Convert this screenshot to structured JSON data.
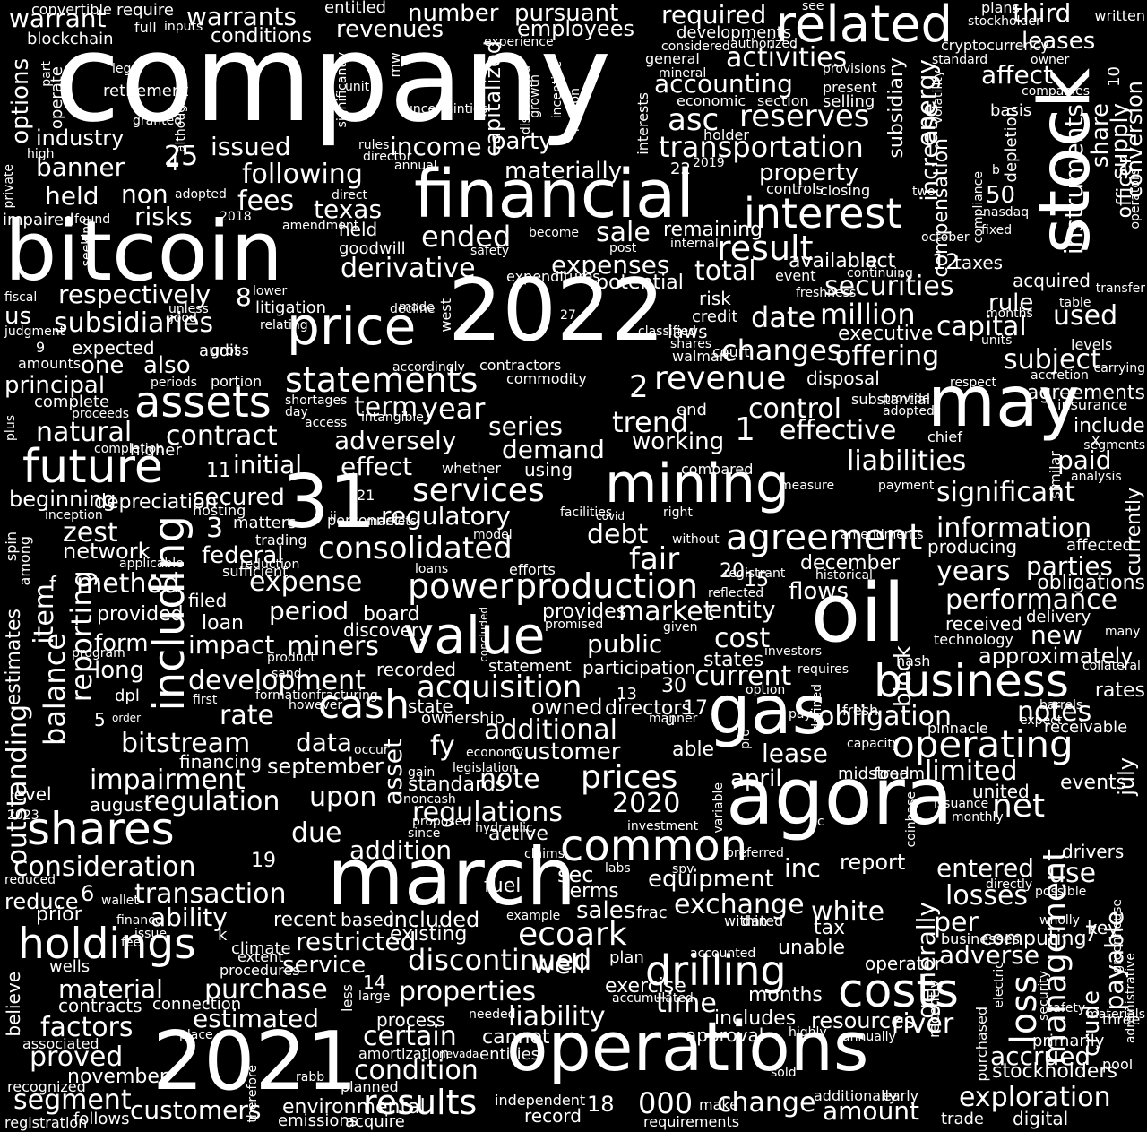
{
  "colors": {
    "background": "#000000",
    "text": "#ffffff"
  },
  "words": [
    "company",
    "bitcoin",
    "2022",
    "financial",
    "stock",
    "related",
    "may",
    "oil",
    "gas",
    "agora",
    "march",
    "2021",
    "operations",
    "31",
    "mining",
    "price",
    "assets",
    "future",
    "shares",
    "holdings",
    "value",
    "including",
    "cash",
    "business",
    "operating",
    "costs",
    "drilling",
    "interest",
    "statements",
    "services",
    "agreement",
    "consolidated",
    "production",
    "power",
    "common",
    "acquisition",
    "revenue",
    "accounting",
    "transportation",
    "reserves",
    "asc",
    "activities",
    "income",
    "issued",
    "industry",
    "banner",
    "following",
    "fees",
    "held",
    "non",
    "risks",
    "texas",
    "ended",
    "sale",
    "derivative",
    "expenses",
    "total",
    "result",
    "securities",
    "million",
    "capital",
    "date",
    "changes",
    "offering",
    "subject",
    "used",
    "executive",
    "respectively",
    "subsidiaries",
    "us",
    "one",
    "also",
    "principal",
    "term",
    "year",
    "trend",
    "control",
    "effective",
    "liabilities",
    "paid",
    "significant",
    "information",
    "natural",
    "contract",
    "adversely",
    "series",
    "demand",
    "working",
    "effect",
    "initial",
    "regulatory",
    "zest",
    "federal",
    "debt",
    "fair",
    "flows",
    "performance",
    "parties",
    "years",
    "period",
    "expense",
    "impact",
    "development",
    "miners",
    "market",
    "public",
    "cost",
    "new",
    "approximately",
    "current",
    "rate",
    "obligation",
    "notes",
    "bitstream",
    "data",
    "additional",
    "fy",
    "customer",
    "lease",
    "impairment",
    "prices",
    "note",
    "limited",
    "regulation",
    "upon",
    "regulations",
    "2020",
    "asset",
    "net",
    "due",
    "consideration",
    "transaction",
    "addition",
    "report",
    "entered",
    "inc",
    "use",
    "ability",
    "included",
    "ecoark",
    "exchange",
    "equipment",
    "white",
    "losses",
    "per",
    "well",
    "adverse",
    "material",
    "purchase",
    "properties",
    "estimated",
    "liability",
    "time",
    "loss",
    "management",
    "payable",
    "river",
    "factors",
    "proved",
    "certain",
    "condition",
    "results",
    "exploration",
    "accrued",
    "segment",
    "customers",
    "000",
    "change",
    "amount",
    "stockholders",
    "warrant",
    "warrants",
    "number",
    "pursuant",
    "required",
    "third",
    "leases",
    "affect",
    "energy",
    "increase",
    "instruments",
    "share",
    "supply",
    "conversion",
    "officer",
    "subsidiary",
    "compensation",
    "basis",
    "depletion",
    "revenues",
    "employees",
    "conditions",
    "options",
    "operate",
    "blockchain",
    "convertible",
    "require",
    "entitled",
    "party",
    "capitalized",
    "materially",
    "property",
    "interests",
    "held",
    "goodwill",
    "remaining",
    "potential",
    "available",
    "act",
    "taxes",
    "acquired",
    "rule",
    "risk",
    "laws",
    "court",
    "walmart",
    "credit",
    "disposal",
    "agreements",
    "include",
    "chief",
    "insurance",
    "method",
    "item",
    "balance",
    "reporting",
    "outstanding",
    "estimates",
    "depreciation",
    "network",
    "beginning",
    "secured",
    "filed",
    "provided",
    "form",
    "long",
    "loan",
    "board",
    "discovery",
    "provides",
    "entity",
    "states",
    "received",
    "delivery",
    "participation",
    "recorded",
    "statement",
    "ownership",
    "directors",
    "state",
    "owned",
    "able",
    "april",
    "midstream",
    "food",
    "united",
    "events",
    "level",
    "august",
    "july",
    "september",
    "financing",
    "standards",
    "active",
    "existing",
    "discontinued",
    "service",
    "restricted",
    "recent",
    "based",
    "sales",
    "sec",
    "terms",
    "fuel",
    "unable",
    "tax",
    "computing",
    "operator",
    "months",
    "includes",
    "approval",
    "resources",
    "exercise",
    "plan",
    "reduce",
    "prior",
    "wells",
    "contracts",
    "connection",
    "november",
    "believe",
    "associated",
    "recognized",
    "registration",
    "follows",
    "emissions",
    "acquire",
    "planned",
    "environmental",
    "record",
    "digital",
    "requirements",
    "independent",
    "additionally",
    "cannot",
    "entities",
    "amortization",
    "less",
    "process",
    "currently",
    "affected",
    "producing",
    "december",
    "obligations",
    "technology",
    "rates",
    "receivable",
    "key",
    "primarily",
    "crude",
    "generally",
    "block",
    "pool",
    "three",
    "sold",
    "make",
    "early",
    "trade",
    "businesses",
    "pinnacle",
    "fresh",
    "hash",
    "pay",
    "capacity",
    "occur",
    "economy",
    "legislation",
    "gain",
    "noncash",
    "since",
    "investment",
    "hydraulic",
    "claims",
    "labs",
    "spv",
    "preferred",
    "directly",
    "possible",
    "monthly",
    "issuance",
    "coinbase",
    "compliance",
    "fixed",
    "nasdaq",
    "october",
    "amendment",
    "2018",
    "seeking",
    "impaired",
    "private",
    "high",
    "although",
    "retirement",
    "legal",
    "part",
    "unit",
    "significantly",
    "mw",
    "uncertainties",
    "rules",
    "director",
    "annual",
    "motion",
    "discounted",
    "growth",
    "incentive",
    "experience",
    "developments",
    "considered",
    "mineral",
    "economic",
    "section",
    "selling",
    "present",
    "provisions",
    "general",
    "authorized",
    "holder",
    "2019",
    "controls",
    "closing",
    "two",
    "continuing",
    "event",
    "freshness",
    "direct",
    "adopted",
    "found",
    "granted",
    "full",
    "inputs",
    "stockholder",
    "written",
    "plans",
    "see",
    "owner",
    "standard",
    "volatility",
    "cryptocurrency",
    "companies",
    "operators",
    "administrative",
    "greenhouse",
    "materials",
    "wholly",
    "electric",
    "security",
    "recently",
    "purchased",
    "annually",
    "highly",
    "accumulated",
    "needed",
    "large",
    "rabb",
    "therefore",
    "nevada",
    "issue",
    "finance",
    "fee",
    "2023",
    "wallet",
    "reduced",
    "accounted",
    "climate",
    "procedures",
    "extent",
    "example",
    "dated",
    "frac",
    "within",
    "variable",
    "pro",
    "defined",
    "requires",
    "investors",
    "option",
    "given",
    "manner",
    "promised",
    "concluded",
    "without",
    "registrant",
    "historical",
    "reflected",
    "amendments",
    "hosting",
    "reduction",
    "applicable",
    "sufficient",
    "inception",
    "spin",
    "among",
    "trading",
    "matters",
    "markets",
    "personnel",
    "model",
    "loans",
    "efforts",
    "facilities",
    "covid",
    "right",
    "payment",
    "compared",
    "measure",
    "analysis",
    "similar",
    "segments",
    "months",
    "units",
    "levels",
    "carrying",
    "accretion",
    "respect",
    "provide",
    "adopted",
    "substantial",
    "classified",
    "contractors",
    "accordingly",
    "portion",
    "audit",
    "periods",
    "gross",
    "good",
    "relating",
    "litigation",
    "made",
    "unless",
    "decline",
    "judgment",
    "fiscal",
    "amounts",
    "expected",
    "complete",
    "proceeds",
    "plus",
    "completion",
    "higher",
    "whether",
    "using",
    "end",
    "day",
    "shortages",
    "access",
    "intangible",
    "commodity",
    "expenditures",
    "safety",
    "become",
    "internal",
    "post",
    "transfer",
    "table",
    "lower",
    "west",
    "shares",
    "collateral",
    "barrels",
    "expect",
    "many",
    "drivers",
    "sand",
    "product",
    "fracturing",
    "formation",
    "however",
    "first",
    "dpl",
    "order",
    "program",
    "proposed",
    "place",
    "safety",
    "20",
    "15",
    "30",
    "13",
    "17",
    "18",
    "19",
    "14",
    "50",
    "12",
    "10",
    "11",
    "21",
    "27",
    "22",
    "25",
    "8",
    "9",
    "5",
    "7",
    "6",
    "2",
    "4",
    "1",
    "3",
    "u",
    "k",
    "c",
    "f",
    "b",
    "ii",
    "x"
  ]
}
